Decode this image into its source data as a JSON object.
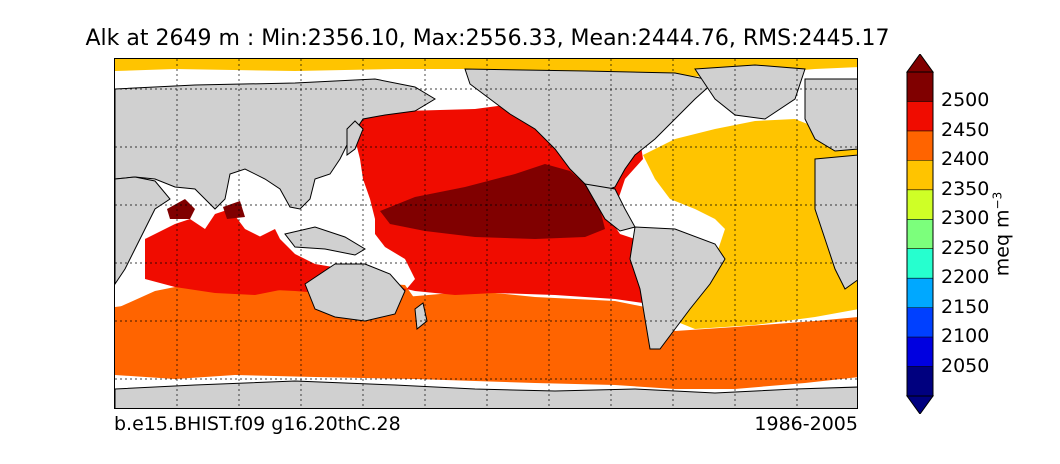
{
  "title": "Alk at 2649 m : Min:2356.10, Max:2556.33, Mean:2444.76, RMS:2445.17",
  "caption_left": "b.e15.BHIST.f09 g16.20thC.28",
  "caption_right": "1986-2005",
  "colorbar": {
    "unit_base": "meq m",
    "unit_exp": "−3",
    "levels": [
      {
        "label": "",
        "color": "#00007f"
      },
      {
        "label": "2050",
        "color": "#0000e0"
      },
      {
        "label": "2100",
        "color": "#0040ff"
      },
      {
        "label": "2150",
        "color": "#00a8ff"
      },
      {
        "label": "2200",
        "color": "#26ffcf"
      },
      {
        "label": "2250",
        "color": "#7cff7c"
      },
      {
        "label": "2300",
        "color": "#cfff26"
      },
      {
        "label": "2350",
        "color": "#ffc400"
      },
      {
        "label": "2400",
        "color": "#ff6400"
      },
      {
        "label": "2450",
        "color": "#f00c00"
      },
      {
        "label": "2500",
        "color": "#800000"
      }
    ],
    "extend": "both"
  },
  "map": {
    "projection": "cylindrical, centered on Pacific",
    "land_color": "#d0d0d0",
    "no_data_color": "#ffffff",
    "gridlines": "dotted"
  }
}
